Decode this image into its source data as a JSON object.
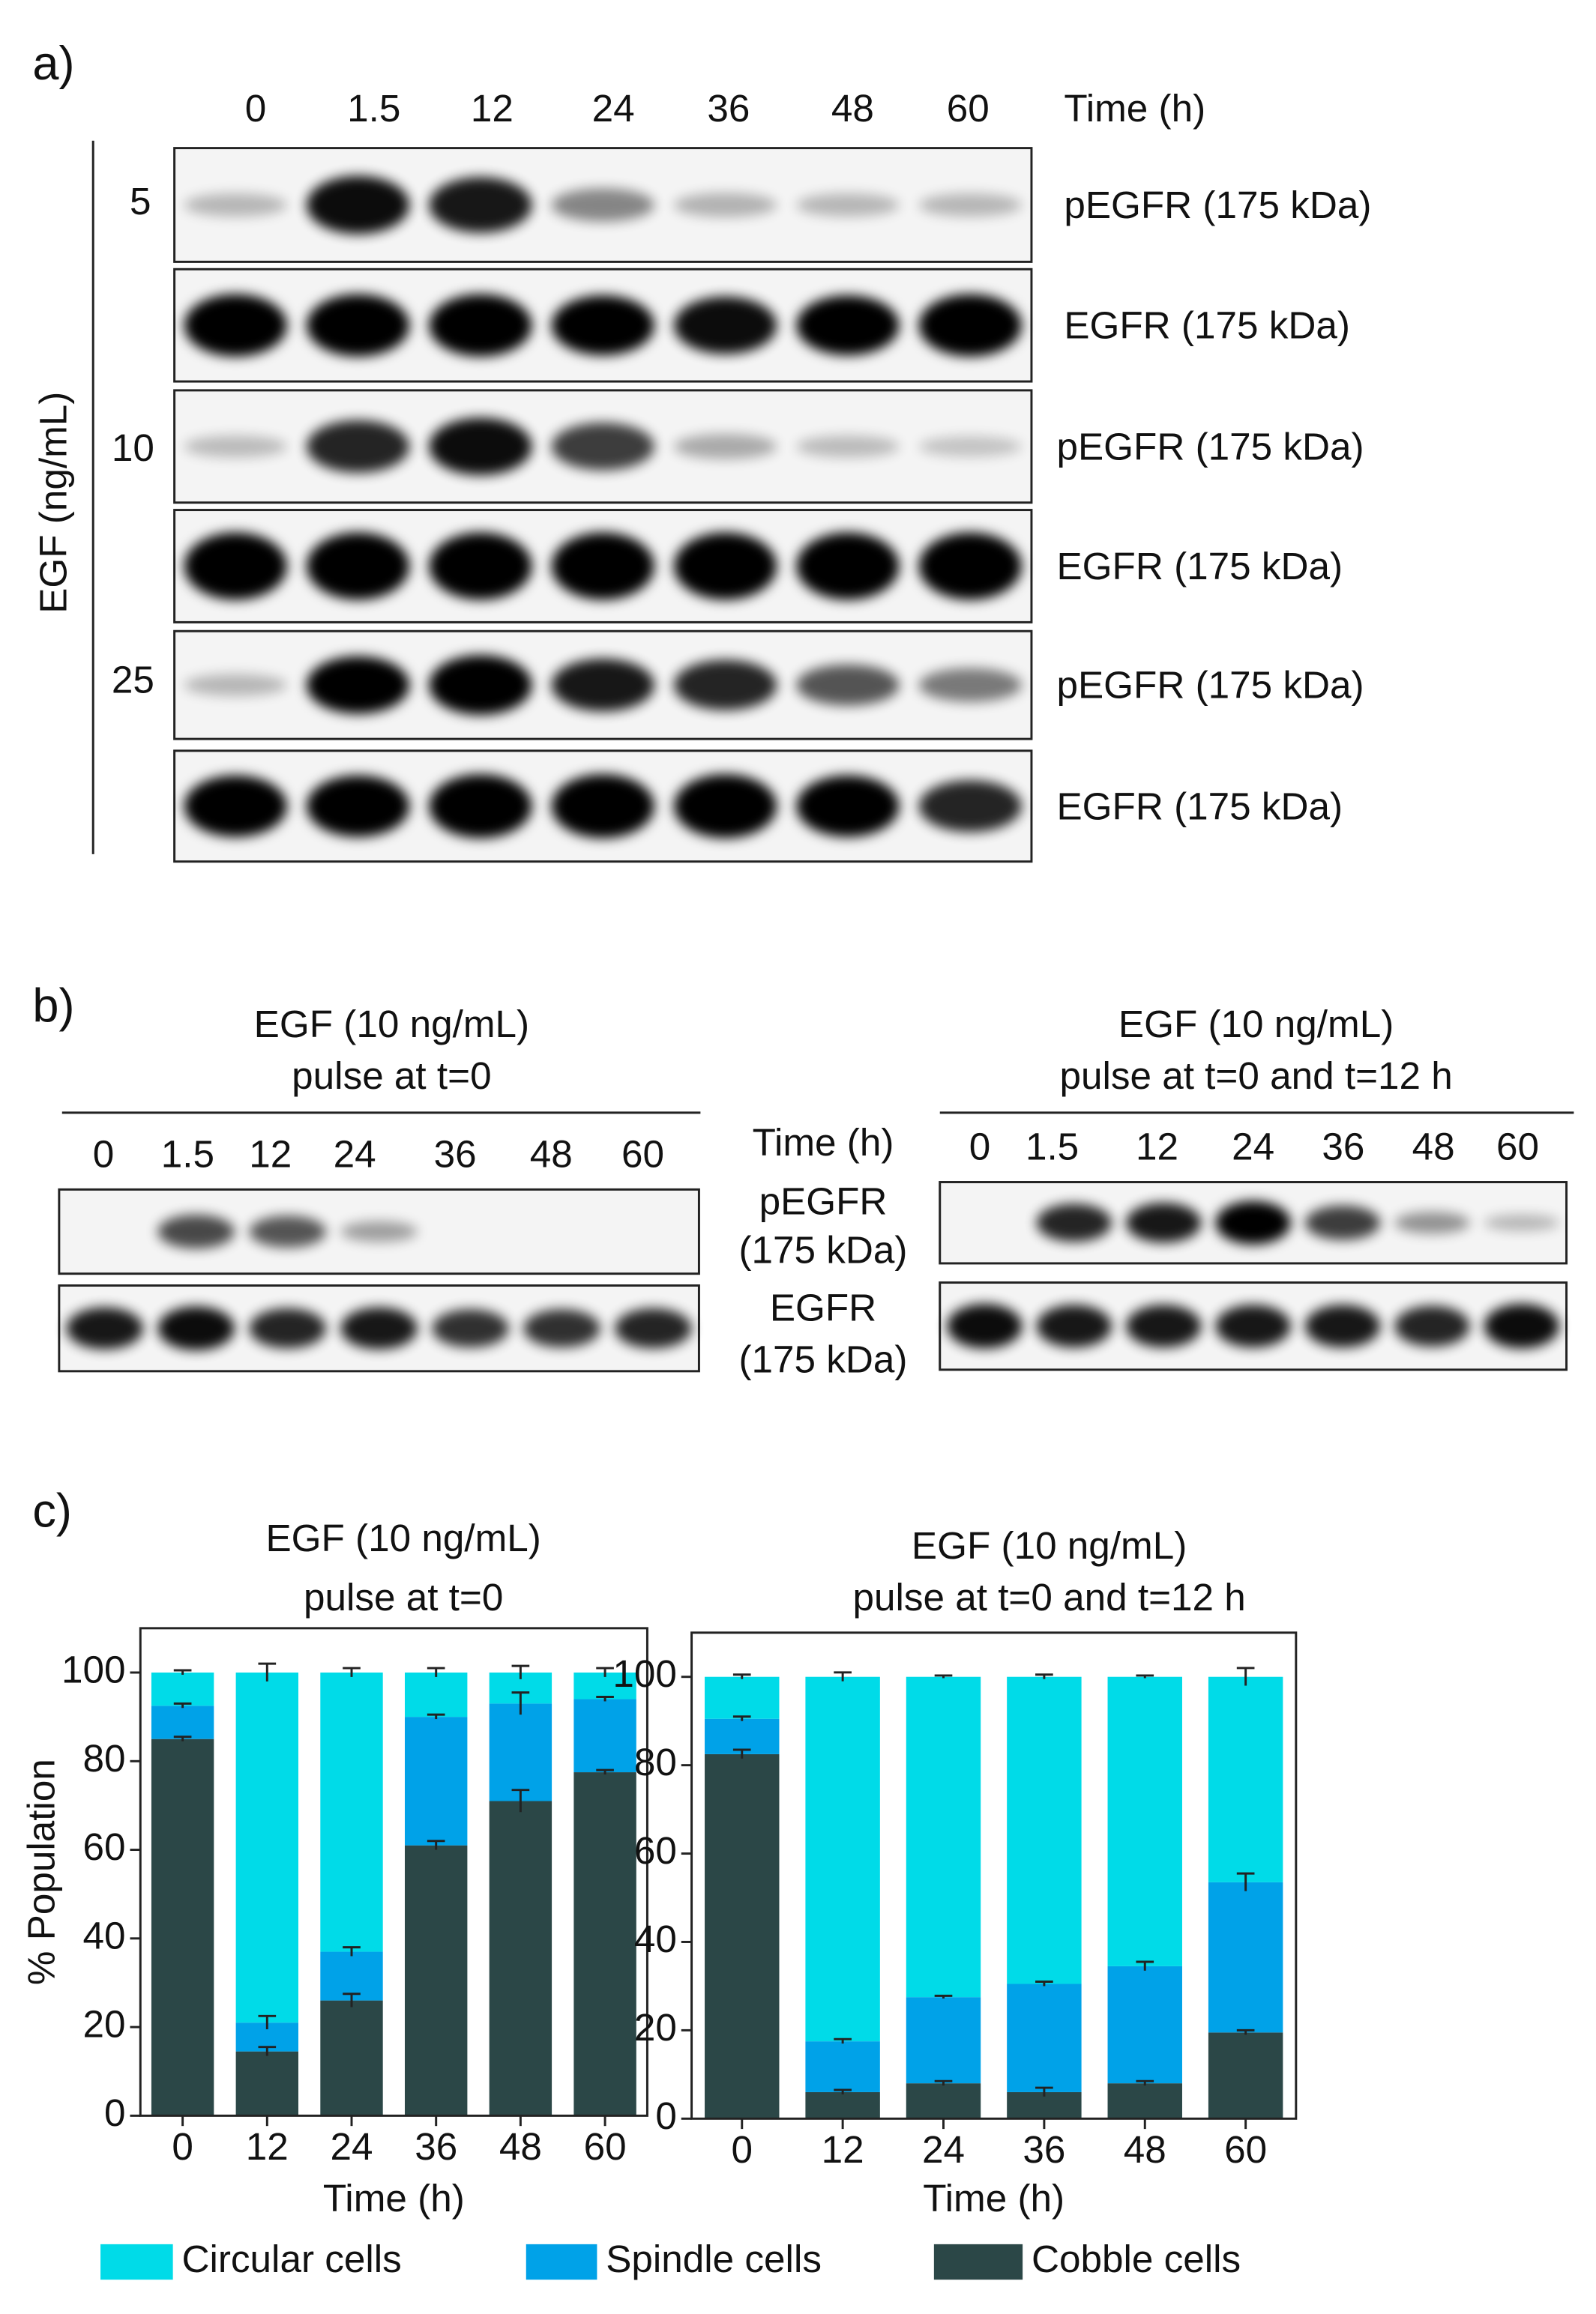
{
  "panel_a": {
    "label": "a)",
    "time_label": "Time (h)",
    "times": [
      "0",
      "1.5",
      "12",
      "24",
      "36",
      "48",
      "60"
    ],
    "dose_label": "EGF (ng/mL)",
    "rows": [
      {
        "dose": "5",
        "blots": [
          "pEGFR (175 kDa)",
          "EGFR (175 kDa)"
        ]
      },
      {
        "dose": "10",
        "blots": [
          "pEGFR (175 kDa)",
          "EGFR (175 kDa)"
        ]
      },
      {
        "dose": "25",
        "blots": [
          "pEGFR (175 kDa)",
          "EGFR (175 kDa)"
        ]
      }
    ]
  },
  "panel_b": {
    "label": "b)",
    "time_label": "Time (h)",
    "protein_labels": [
      "pEGFR",
      "(175 kDa)",
      "EGFR",
      "(175 kDa)"
    ],
    "left": {
      "title_lines": [
        "EGF (10 ng/mL)",
        "pulse at t=0"
      ],
      "times": [
        "0",
        "1.5",
        "12",
        "24",
        "36",
        "48",
        "60"
      ]
    },
    "right": {
      "title_lines": [
        "EGF (10 ng/mL)",
        "pulse at t=0 and t=12 h"
      ],
      "times": [
        "0",
        "1.5",
        "12",
        "24",
        "36",
        "48",
        "60"
      ]
    }
  },
  "panel_c": {
    "label": "c)"
  },
  "chart_data": [
    {
      "type": "bar",
      "stacked": true,
      "title": "EGF (10 ng/mL)",
      "subtitle": "pulse at t=0",
      "x_label": "Time (h)",
      "y_label": "% Population",
      "categories": [
        "0",
        "12",
        "24",
        "36",
        "48",
        "60"
      ],
      "ylim": [
        0,
        110
      ],
      "yticks": [
        0,
        20,
        40,
        60,
        80,
        100
      ],
      "series": [
        {
          "name": "Cobble cells",
          "color": "#2b4747",
          "values": [
            85,
            14.5,
            26,
            61,
            71,
            77.5
          ],
          "errors": [
            0.5,
            1,
            1.5,
            1,
            2.5,
            0.5
          ]
        },
        {
          "name": "Spindle cells",
          "color": "#00a2e8",
          "values": [
            7.5,
            6.5,
            11,
            29,
            22,
            16.5
          ],
          "errors": [
            0.5,
            1.5,
            1,
            0.5,
            2.5,
            0.5
          ]
        },
        {
          "name": "Circular cells",
          "color": "#00dbe8",
          "values": [
            7.5,
            79,
            63,
            10,
            7,
            6
          ],
          "errors": [
            0.5,
            2,
            1,
            1,
            1.5,
            1
          ]
        }
      ]
    },
    {
      "type": "bar",
      "stacked": true,
      "title": "EGF (10 ng/mL)",
      "subtitle": "pulse at t=0 and t=12 h",
      "x_label": "Time (h)",
      "categories": [
        "0",
        "12",
        "24",
        "36",
        "48",
        "60"
      ],
      "ylim": [
        0,
        110
      ],
      "yticks": [
        0,
        20,
        40,
        60,
        80,
        100
      ],
      "series": [
        {
          "name": "Cobble cells",
          "color": "#2b4747",
          "values": [
            82.5,
            6,
            8,
            6,
            8,
            19.5
          ],
          "errors": [
            1,
            0.5,
            0.5,
            1,
            0.5,
            0.5
          ]
        },
        {
          "name": "Spindle cells",
          "color": "#00a2e8",
          "values": [
            8,
            11.5,
            19.5,
            24.5,
            26.5,
            34
          ],
          "errors": [
            0.5,
            0.5,
            0.3,
            0.5,
            1,
            2
          ]
        },
        {
          "name": "Circular cells",
          "color": "#00dbe8",
          "values": [
            9.5,
            82.5,
            72.5,
            69.5,
            65.5,
            46.5
          ],
          "errors": [
            0.5,
            1,
            0.3,
            0.5,
            0.3,
            2
          ]
        }
      ]
    }
  ]
}
